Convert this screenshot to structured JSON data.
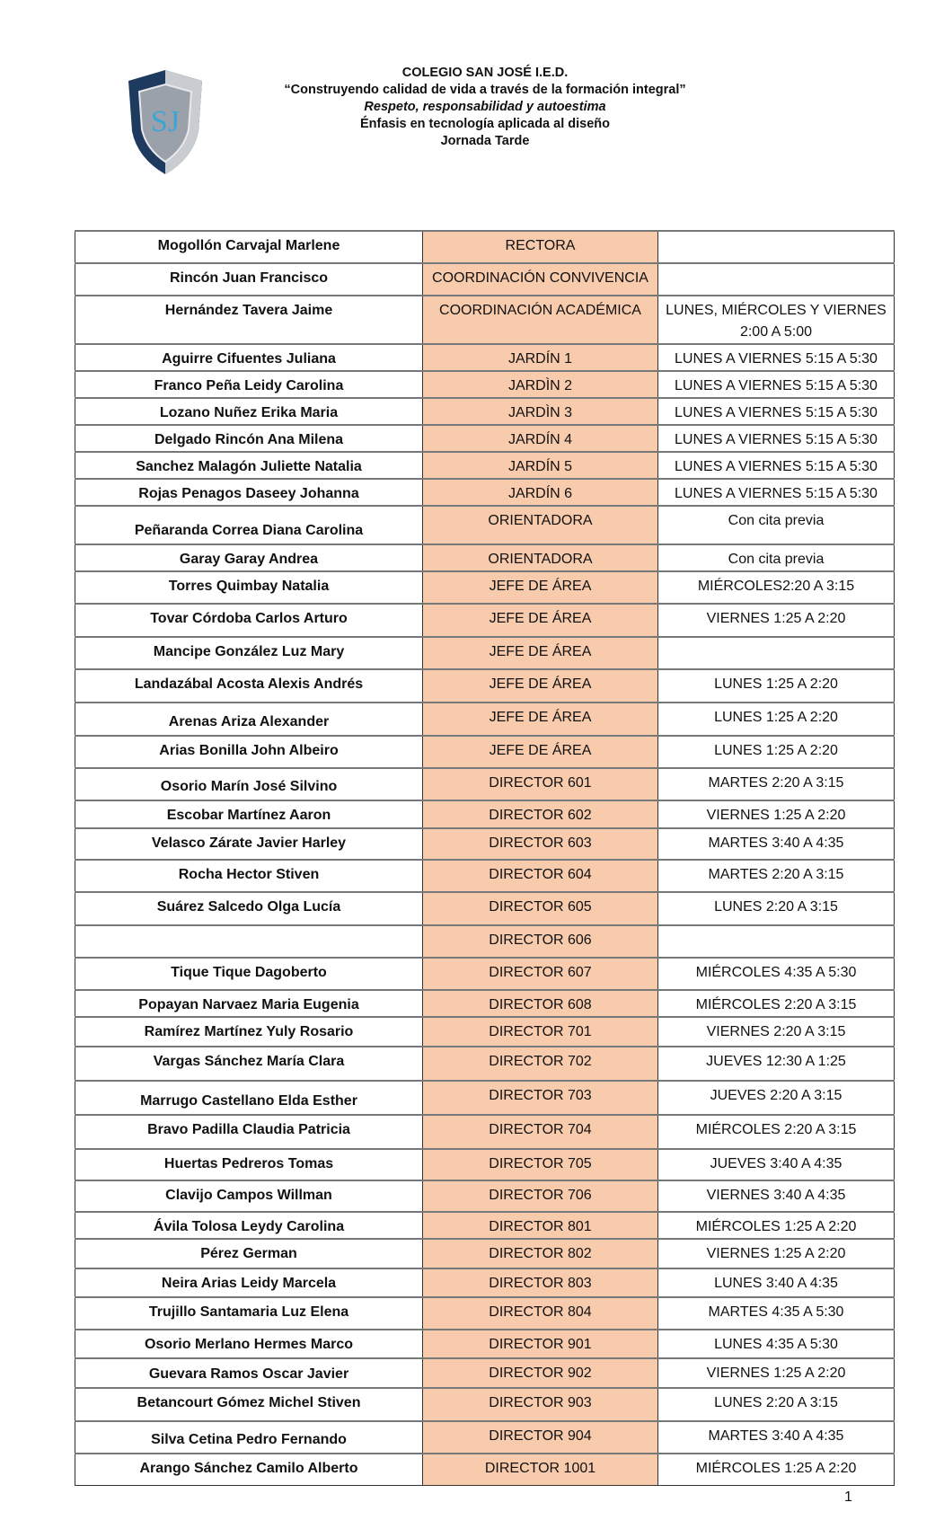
{
  "header": {
    "logo_text": "SJ",
    "school": "COLEGIO SAN JOSÉ I.E.D.",
    "motto": "“Construyendo calidad de vida a través de la formación integral”",
    "values": "Respeto, responsabilidad y autoestima",
    "emphasis": "Énfasis en tecnología aplicada al diseño",
    "shift": "Jornada Tarde"
  },
  "colors": {
    "role_fill": "#f8cbad",
    "shield_dark": "#1f3a5f",
    "shield_letters": "#3aa6d6"
  },
  "rows": [
    {
      "name": "Mogollón Carvajal Marlene",
      "role": "RECTORA",
      "schedule": ""
    },
    {
      "name": "Rincón Juan Francisco",
      "role": "COORDINACIÓN CONVIVENCIA",
      "schedule": ""
    },
    {
      "name": "Hernández Tavera Jaime",
      "role": "COORDINACIÓN ACADÉMICA",
      "schedule": "LUNES, MIÉRCOLES Y VIERNES 2:00 A 5:00"
    },
    {
      "name": "Aguirre Cifuentes Juliana",
      "role": "JARDÍN 1",
      "schedule": "LUNES A VIERNES 5:15 A 5:30"
    },
    {
      "name": "Franco Peña Leidy Carolina",
      "role": "JARDÌN 2",
      "schedule": "LUNES A VIERNES 5:15 A 5:30"
    },
    {
      "name": "Lozano Nuñez Erika Maria",
      "role": "JARDÌN 3",
      "schedule": "LUNES A VIERNES 5:15 A 5:30"
    },
    {
      "name": "Delgado Rincón Ana Milena",
      "role": "JARDÍN 4",
      "schedule": "LUNES A VIERNES 5:15 A 5:30"
    },
    {
      "name": "Sanchez Malagón Juliette Natalia",
      "role": "JARDÍN 5",
      "schedule": "LUNES A VIERNES 5:15 A 5:30"
    },
    {
      "name": "Rojas Penagos Daseey Johanna",
      "role": "JARDÍN 6",
      "schedule": "LUNES A VIERNES 5:15 A 5:30"
    },
    {
      "name": "Peñaranda Correa Diana Carolina",
      "role": "ORIENTADORA",
      "schedule": "Con cita previa"
    },
    {
      "name": "Garay Garay Andrea",
      "role": "ORIENTADORA",
      "schedule": "Con cita previa"
    },
    {
      "name": "Torres Quimbay  Natalia",
      "role": "JEFE DE ÁREA",
      "schedule": "MIÉRCOLES2:20 A 3:15"
    },
    {
      "name": "Tovar Córdoba Carlos Arturo",
      "role": "JEFE DE ÁREA",
      "schedule": "VIERNES 1:25 A 2:20"
    },
    {
      "name": "Mancipe González Luz Mary",
      "role": "JEFE DE ÁREA",
      "schedule": ""
    },
    {
      "name": "Landazábal Acosta Alexis Andrés",
      "role": "JEFE DE ÁREA",
      "schedule": "LUNES 1:25 A 2:20"
    },
    {
      "name": "Arenas Ariza Alexander",
      "role": "JEFE DE ÁREA",
      "schedule": "LUNES 1:25 A 2:20"
    },
    {
      "name": "Arias Bonilla John Albeiro",
      "role": "JEFE DE ÁREA",
      "schedule": "LUNES 1:25 A 2:20"
    },
    {
      "name": "Osorio Marín José Silvino",
      "role": "DIRECTOR 601",
      "schedule": "MARTES 2:20 A 3:15"
    },
    {
      "name": "Escobar Martínez Aaron",
      "role": "DIRECTOR 602",
      "schedule": "VIERNES 1:25 A 2:20"
    },
    {
      "name": "Velasco Zárate Javier Harley",
      "role": "DIRECTOR 603",
      "schedule": "MARTES 3:40 A 4:35"
    },
    {
      "name": "Rocha Hector Stiven",
      "role": "DIRECTOR 604",
      "schedule": "MARTES 2:20 A 3:15"
    },
    {
      "name": "Suárez Salcedo Olga Lucía",
      "role": "DIRECTOR 605",
      "schedule": "LUNES 2:20 A 3:15"
    },
    {
      "name": "",
      "role": "DIRECTOR 606",
      "schedule": ""
    },
    {
      "name": "Tique Tique Dagoberto",
      "role": "DIRECTOR 607",
      "schedule": "MIÉRCOLES 4:35 A 5:30"
    },
    {
      "name": "Popayan Narvaez Maria Eugenia",
      "role": "DIRECTOR 608",
      "schedule": "MIÉRCOLES 2:20 A 3:15"
    },
    {
      "name": "Ramírez Martínez Yuly Rosario",
      "role": "DIRECTOR 701",
      "schedule": "VIERNES 2:20 A 3:15"
    },
    {
      "name": "Vargas Sánchez María Clara",
      "role": "DIRECTOR 702",
      "schedule": "JUEVES 12:30 A 1:25"
    },
    {
      "name": "Marrugo Castellano Elda Esther",
      "role": "DIRECTOR 703",
      "schedule": "JUEVES 2:20 A 3:15"
    },
    {
      "name": "Bravo Padilla Claudia Patricia",
      "role": "DIRECTOR 704",
      "schedule": "MIÉRCOLES 2:20 A 3:15"
    },
    {
      "name": "Huertas Pedreros Tomas",
      "role": "DIRECTOR 705",
      "schedule": "JUEVES 3:40 A 4:35"
    },
    {
      "name": "Clavijo Campos Willman",
      "role": "DIRECTOR 706",
      "schedule": "VIERNES 3:40 A 4:35"
    },
    {
      "name": "Ávila Tolosa Leydy Carolina",
      "role": "DIRECTOR 801",
      "schedule": "MIÉRCOLES 1:25 A 2:20"
    },
    {
      "name": "Pérez German",
      "role": "DIRECTOR 802",
      "schedule": "VIERNES 1:25 A 2:20"
    },
    {
      "name": "Neira Arias Leidy Marcela",
      "role": "DIRECTOR 803",
      "schedule": "LUNES 3:40 A 4:35"
    },
    {
      "name": "Trujillo Santamaria Luz Elena",
      "role": "DIRECTOR 804",
      "schedule": "MARTES 4:35 A 5:30"
    },
    {
      "name": "Osorio Merlano Hermes Marco",
      "role": "DIRECTOR 901",
      "schedule": "LUNES 4:35 A 5:30"
    },
    {
      "name": "Guevara Ramos Oscar Javier",
      "role": "DIRECTOR 902",
      "schedule": "VIERNES 1:25 A 2:20"
    },
    {
      "name": "Betancourt Gómez Michel Stiven",
      "role": "DIRECTOR 903",
      "schedule": "LUNES 2:20 A 3:15"
    },
    {
      "name": "Silva Cetina Pedro Fernando",
      "role": "DIRECTOR 904",
      "schedule": "MARTES 3:40 A 4:35"
    },
    {
      "name": "Arango Sánchez Camilo Alberto",
      "role": "DIRECTOR 1001",
      "schedule": "MIÉRCOLES 1:25 A 2:20"
    }
  ],
  "page_number": "1"
}
